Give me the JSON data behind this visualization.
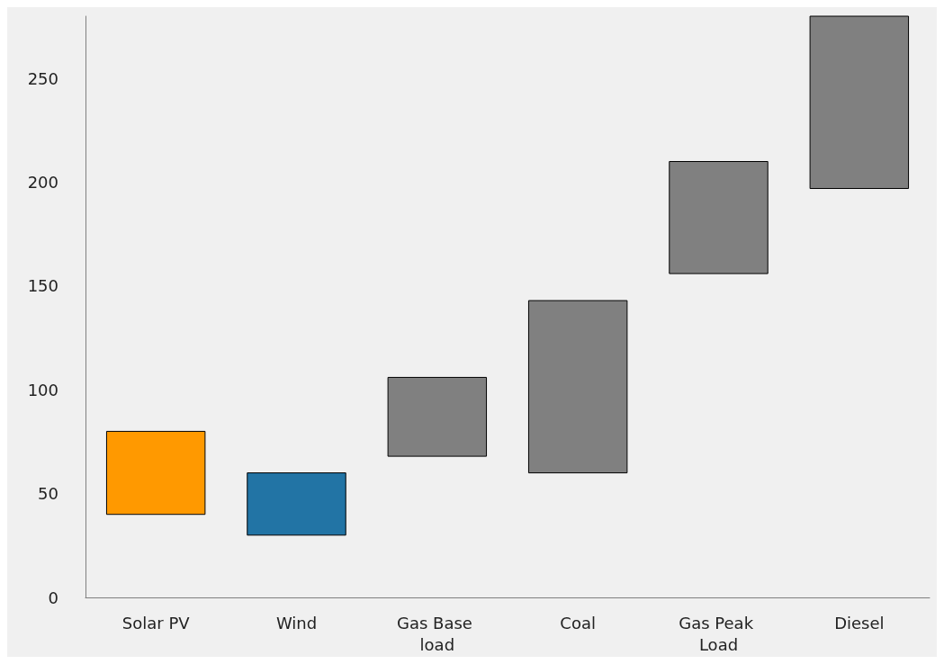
{
  "chart_data": {
    "type": "bar",
    "categories": [
      "Solar PV",
      "Wind",
      "Gas Base load",
      "Coal",
      "Gas Peak Load",
      "Diesel"
    ],
    "values": [
      40,
      30,
      38,
      83,
      54,
      83
    ],
    "base": [
      40,
      30,
      68,
      60,
      156,
      197
    ],
    "colors": [
      "#ff9900",
      "#2274a5",
      "#808080",
      "#808080",
      "#808080",
      "#808080"
    ],
    "ylim": [
      0,
      280
    ],
    "yticks": [
      0,
      50,
      100,
      150,
      200,
      250
    ],
    "grid": false
  }
}
